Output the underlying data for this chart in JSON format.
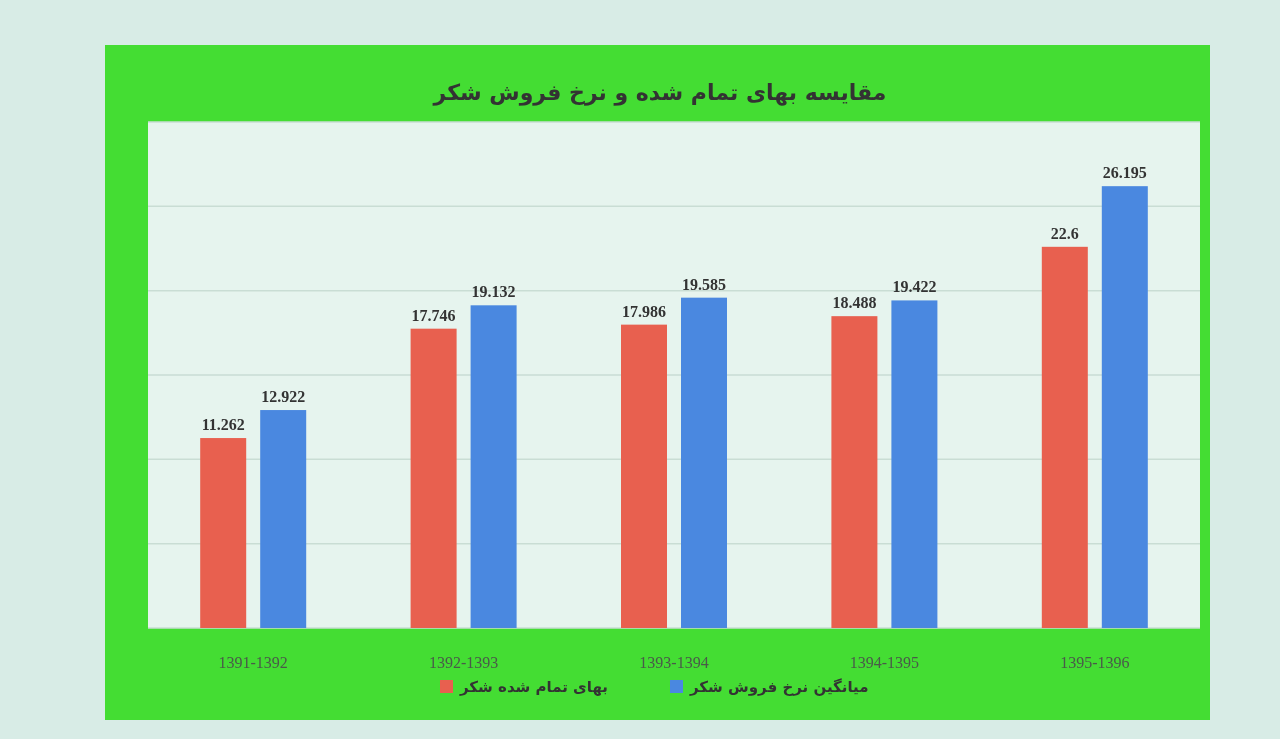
{
  "chart_data": {
    "type": "bar",
    "title": "مقایسه بهای تمام شده و نرخ فروش شکر",
    "categories": [
      "1391-1392",
      "1392-1393",
      "1393-1394",
      "1394-1395",
      "1395-1396"
    ],
    "series": [
      {
        "name": "بهای تمام شده شکر",
        "color": "#e8604f",
        "values": [
          11.262,
          17.746,
          17.986,
          18.488,
          22.6
        ]
      },
      {
        "name": "میانگین نرخ فروش شکر",
        "color": "#4a88e0",
        "values": [
          12.922,
          19.132,
          19.585,
          19.422,
          26.195
        ]
      }
    ],
    "ylim": [
      0,
      30
    ],
    "yticks": [
      {
        "value": 0,
        "label": null
      },
      {
        "value": 5,
        "label": null
      },
      {
        "value": 10,
        "label": null
      },
      {
        "value": 15,
        "label": null
      },
      {
        "value": 20,
        "label": null
      },
      {
        "value": 25,
        "label": null
      },
      {
        "value": 30,
        "label": null
      }
    ],
    "tick_labels": "x",
    "grid": "y",
    "data_labels": true,
    "legend": "bottom"
  }
}
